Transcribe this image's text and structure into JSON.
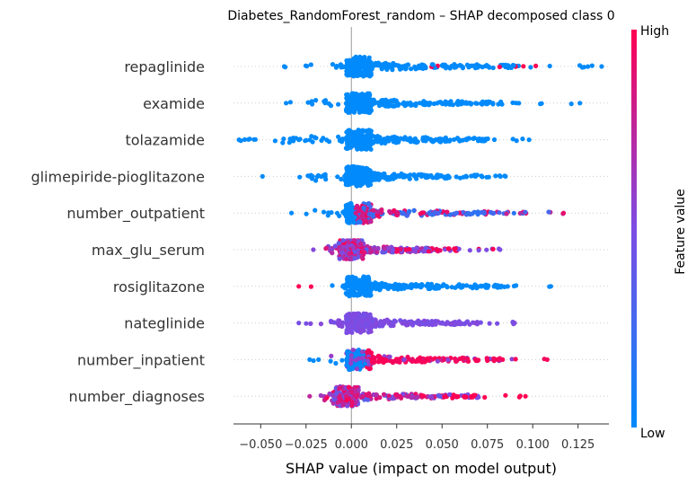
{
  "chart_data": {
    "type": "scatter",
    "subtype": "shap-beeswarm",
    "title": "Diabetes_RandomForest_random – SHAP decomposed class 0",
    "xlabel": "SHAP value (impact on model output)",
    "xlim": [
      -0.065,
      0.142
    ],
    "x_ticks": [
      -0.05,
      -0.025,
      0.0,
      0.025,
      0.05,
      0.075,
      0.1,
      0.125
    ],
    "x_tick_labels": [
      "−0.050",
      "−0.025",
      "0.000",
      "0.025",
      "0.050",
      "0.075",
      "0.100",
      "0.125"
    ],
    "zero_line": 0.0,
    "colorbar": {
      "label": "Feature value",
      "high_label": "High",
      "low_label": "Low",
      "low_color": "#008afb",
      "mid_color": "#7d4ce4",
      "high_color": "#ff0052"
    },
    "features": [
      {
        "name": "repaglinide",
        "min": -0.037,
        "max": 0.138,
        "core": 0.004,
        "dense_end": 0.095,
        "color_mode": "low_high_tail",
        "high_start": 0.035
      },
      {
        "name": "examide",
        "min": -0.036,
        "max": 0.126,
        "core": 0.004,
        "dense_end": 0.085,
        "color_mode": "low"
      },
      {
        "name": "tolazamide",
        "min": -0.062,
        "max": 0.098,
        "core": 0.004,
        "dense_end": 0.085,
        "color_mode": "low"
      },
      {
        "name": "glimepiride-pioglitazone",
        "min": -0.049,
        "max": 0.085,
        "core": 0.004,
        "dense_end": 0.072,
        "color_mode": "low"
      },
      {
        "name": "number_outpatient",
        "min": -0.033,
        "max": 0.117,
        "core": 0.004,
        "dense_end": 0.09,
        "color_mode": "mixed_right"
      },
      {
        "name": "max_glu_serum",
        "min": -0.021,
        "max": 0.082,
        "core": 0.0,
        "dense_end": 0.06,
        "color_mode": "mixed"
      },
      {
        "name": "rosiglitazone",
        "min": -0.029,
        "max": 0.11,
        "core": 0.004,
        "dense_end": 0.085,
        "color_mode": "high_left"
      },
      {
        "name": "nateglinide",
        "min": -0.029,
        "max": 0.09,
        "core": 0.004,
        "dense_end": 0.07,
        "color_mode": "mid"
      },
      {
        "name": "number_inpatient",
        "min": -0.023,
        "max": 0.108,
        "core": 0.004,
        "dense_end": 0.085,
        "color_mode": "high_right"
      },
      {
        "name": "number_diagnoses",
        "min": -0.023,
        "max": 0.096,
        "core": -0.003,
        "dense_end": 0.075,
        "color_mode": "mixed"
      }
    ]
  }
}
